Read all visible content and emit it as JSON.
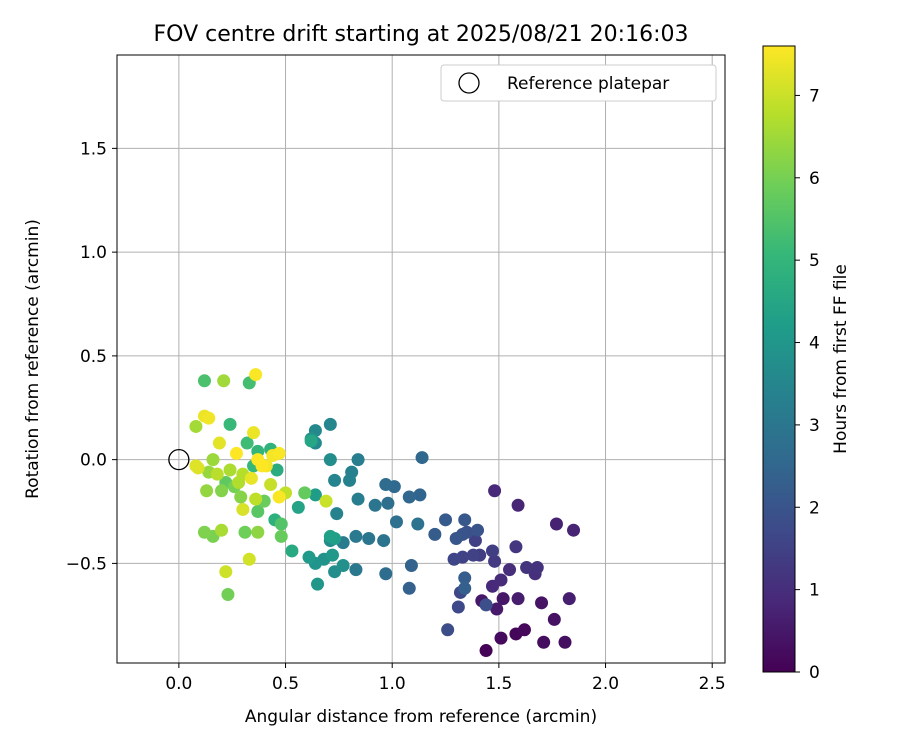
{
  "chart_data": {
    "type": "scatter",
    "title": "FOV centre drift starting at 2025/08/21 20:16:03",
    "xlabel": "Angular distance from reference (arcmin)",
    "ylabel": "Rotation from reference (arcmin)",
    "xlim": [
      -0.29,
      2.56
    ],
    "ylim": [
      -0.98,
      1.95
    ],
    "xticks": [
      0.0,
      0.5,
      1.0,
      1.5,
      2.0,
      2.5
    ],
    "xtick_labels": [
      "0.0",
      "0.5",
      "1.0",
      "1.5",
      "2.0",
      "2.5"
    ],
    "yticks": [
      -0.5,
      0.0,
      0.5,
      1.0,
      1.5
    ],
    "ytick_labels": [
      "−0.5",
      "0.0",
      "0.5",
      "1.0",
      "1.5"
    ],
    "grid": true,
    "legend": {
      "placement": "top-right",
      "entries": [
        "Reference platepar"
      ]
    },
    "reference": {
      "x": 0.0,
      "y": 0.0,
      "label": "Reference platepar"
    },
    "colorbar": {
      "label": "Hours from first FF file",
      "range": [
        0,
        7.6
      ],
      "ticks": [
        0,
        1,
        2,
        3,
        4,
        5,
        6,
        7
      ],
      "tick_labels": [
        "0",
        "1",
        "2",
        "3",
        "4",
        "5",
        "6",
        "7"
      ],
      "colormap": "viridis"
    },
    "colormap_stops": [
      "#440154",
      "#482878",
      "#3e4989",
      "#31688e",
      "#26828e",
      "#1f9e89",
      "#35b779",
      "#6ece58",
      "#b5de2b",
      "#fde725"
    ],
    "points": [
      [
        1.44,
        -0.92,
        0.05
      ],
      [
        1.58,
        -0.84,
        0.1
      ],
      [
        1.62,
        -0.82,
        0.15
      ],
      [
        1.51,
        -0.86,
        0.2
      ],
      [
        1.71,
        -0.88,
        0.25
      ],
      [
        1.81,
        -0.88,
        0.3
      ],
      [
        1.76,
        -0.77,
        0.35
      ],
      [
        1.7,
        -0.69,
        0.4
      ],
      [
        1.52,
        -0.67,
        0.45
      ],
      [
        1.42,
        -0.68,
        0.5
      ],
      [
        1.49,
        -0.72,
        0.55
      ],
      [
        1.59,
        -0.67,
        0.6
      ],
      [
        1.83,
        -0.67,
        0.65
      ],
      [
        1.77,
        -0.31,
        0.7
      ],
      [
        1.85,
        -0.34,
        0.75
      ],
      [
        1.59,
        -0.22,
        0.8
      ],
      [
        1.48,
        -0.15,
        0.85
      ],
      [
        1.47,
        -0.61,
        0.9
      ],
      [
        1.51,
        -0.58,
        0.95
      ],
      [
        1.55,
        -0.53,
        1.0
      ],
      [
        1.67,
        -0.55,
        1.05
      ],
      [
        1.68,
        -0.52,
        1.1
      ],
      [
        1.63,
        -0.52,
        1.15
      ],
      [
        1.58,
        -0.42,
        1.2
      ],
      [
        1.48,
        -0.49,
        1.3
      ],
      [
        1.41,
        -0.46,
        1.35
      ],
      [
        1.47,
        -0.44,
        1.4
      ],
      [
        1.39,
        -0.39,
        1.45
      ],
      [
        1.38,
        -0.46,
        1.5
      ],
      [
        1.33,
        -0.47,
        1.5
      ],
      [
        1.29,
        -0.48,
        1.6
      ],
      [
        1.32,
        -0.64,
        1.65
      ],
      [
        1.31,
        -0.71,
        1.7
      ],
      [
        1.26,
        -0.82,
        1.8
      ],
      [
        1.44,
        -0.7,
        1.85
      ],
      [
        1.35,
        -0.35,
        1.9
      ],
      [
        1.4,
        -0.34,
        1.95
      ],
      [
        1.33,
        -0.36,
        2.0
      ],
      [
        1.3,
        -0.38,
        2.05
      ],
      [
        1.34,
        -0.29,
        2.1
      ],
      [
        1.25,
        -0.29,
        2.15
      ],
      [
        1.2,
        -0.36,
        2.2
      ],
      [
        1.34,
        -0.57,
        2.25
      ],
      [
        1.34,
        -0.62,
        2.3
      ],
      [
        1.08,
        -0.62,
        2.35
      ],
      [
        1.09,
        -0.51,
        2.4
      ],
      [
        1.13,
        -0.17,
        2.45
      ],
      [
        1.08,
        -0.18,
        2.5
      ],
      [
        1.14,
        0.01,
        2.55
      ],
      [
        1.01,
        -0.13,
        2.6
      ],
      [
        0.97,
        -0.12,
        2.65
      ],
      [
        0.97,
        -0.55,
        2.7
      ],
      [
        0.98,
        -0.21,
        2.75
      ],
      [
        1.02,
        -0.3,
        2.8
      ],
      [
        1.12,
        -0.31,
        2.85
      ],
      [
        0.96,
        -0.39,
        2.9
      ],
      [
        0.92,
        -0.22,
        2.95
      ],
      [
        0.89,
        -0.38,
        3.0
      ],
      [
        0.83,
        -0.53,
        3.05
      ],
      [
        0.83,
        -0.37,
        3.1
      ],
      [
        0.77,
        -0.4,
        3.15
      ],
      [
        0.84,
        -0.19,
        3.2
      ],
      [
        0.84,
        0.0,
        3.25
      ],
      [
        0.81,
        -0.06,
        3.3
      ],
      [
        0.8,
        -0.1,
        3.35
      ],
      [
        0.74,
        -0.26,
        3.4
      ],
      [
        0.73,
        -0.1,
        3.45
      ],
      [
        0.71,
        0.17,
        3.5
      ],
      [
        0.64,
        0.14,
        3.55
      ],
      [
        0.64,
        0.08,
        3.6
      ],
      [
        0.71,
        -0.39,
        3.65
      ],
      [
        0.71,
        0.0,
        3.7
      ],
      [
        0.73,
        -0.54,
        3.75
      ],
      [
        0.77,
        -0.51,
        3.8
      ],
      [
        0.62,
        0.1,
        3.85
      ],
      [
        0.68,
        -0.48,
        3.9
      ],
      [
        0.64,
        -0.5,
        3.95
      ],
      [
        0.65,
        -0.6,
        4.0
      ],
      [
        0.72,
        -0.46,
        4.05
      ],
      [
        0.61,
        -0.47,
        4.1
      ],
      [
        0.64,
        -0.17,
        4.2
      ],
      [
        0.73,
        -0.38,
        4.25
      ],
      [
        0.71,
        -0.37,
        4.3
      ],
      [
        0.56,
        -0.23,
        4.4
      ],
      [
        0.62,
        0.09,
        4.5
      ],
      [
        0.53,
        -0.44,
        4.6
      ],
      [
        0.46,
        -0.05,
        4.7
      ],
      [
        0.45,
        -0.29,
        4.8
      ],
      [
        0.43,
        0.05,
        4.9
      ],
      [
        0.37,
        0.04,
        5.0
      ],
      [
        0.35,
        -0.03,
        5.05
      ],
      [
        0.24,
        0.17,
        5.1
      ],
      [
        0.32,
        0.08,
        5.2
      ],
      [
        0.33,
        0.37,
        5.3
      ],
      [
        0.12,
        0.38,
        5.4
      ],
      [
        0.48,
        -0.31,
        5.5
      ],
      [
        0.37,
        -0.25,
        5.6
      ],
      [
        0.22,
        -0.11,
        5.7
      ],
      [
        0.59,
        -0.16,
        5.75
      ],
      [
        0.48,
        -0.37,
        5.8
      ],
      [
        0.4,
        -0.2,
        5.85
      ],
      [
        0.31,
        -0.35,
        5.9
      ],
      [
        0.23,
        -0.65,
        5.95
      ],
      [
        0.26,
        -0.13,
        6.0
      ],
      [
        0.16,
        -0.37,
        6.05
      ],
      [
        0.12,
        -0.35,
        6.1
      ],
      [
        0.2,
        -0.15,
        6.15
      ],
      [
        0.29,
        -0.18,
        6.2
      ],
      [
        0.37,
        -0.35,
        6.3
      ],
      [
        0.13,
        -0.15,
        6.35
      ],
      [
        0.14,
        -0.06,
        6.4
      ],
      [
        0.16,
        0.0,
        6.45
      ],
      [
        0.21,
        0.38,
        6.5
      ],
      [
        0.08,
        0.16,
        6.55
      ],
      [
        0.2,
        -0.34,
        6.6
      ],
      [
        0.24,
        -0.05,
        6.65
      ],
      [
        0.28,
        -0.11,
        6.7
      ],
      [
        0.3,
        -0.07,
        6.75
      ],
      [
        0.18,
        -0.07,
        6.8
      ],
      [
        0.36,
        -0.19,
        6.85
      ],
      [
        0.5,
        -0.16,
        6.9
      ],
      [
        0.43,
        -0.12,
        6.95
      ],
      [
        0.69,
        -0.2,
        7.0
      ],
      [
        0.22,
        -0.54,
        7.05
      ],
      [
        0.33,
        -0.48,
        7.1
      ],
      [
        0.3,
        -0.24,
        7.15
      ],
      [
        0.09,
        -0.04,
        7.2
      ],
      [
        0.08,
        -0.03,
        7.25
      ],
      [
        0.19,
        0.08,
        7.3
      ],
      [
        0.34,
        -0.09,
        7.35
      ],
      [
        0.35,
        0.13,
        7.4
      ],
      [
        0.12,
        0.21,
        7.4
      ],
      [
        0.14,
        0.2,
        7.45
      ],
      [
        0.41,
        -0.03,
        7.5
      ],
      [
        0.44,
        0.02,
        7.5
      ],
      [
        0.47,
        0.03,
        7.55
      ],
      [
        0.36,
        0.41,
        7.55
      ],
      [
        0.47,
        -0.18,
        7.55
      ],
      [
        0.37,
        0.0,
        7.6
      ],
      [
        0.39,
        -0.03,
        7.6
      ],
      [
        0.27,
        0.03,
        7.6
      ]
    ]
  }
}
